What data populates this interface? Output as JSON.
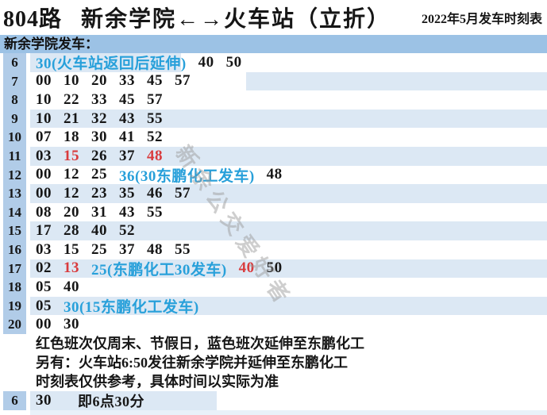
{
  "title": {
    "route": "804路",
    "name": "新余学院←→火车站（立折）",
    "date_label": "2022年5月发车时刻表"
  },
  "section_header": "新余学院发车：",
  "colors": {
    "band": "#9cc2e5",
    "hour_cell": "#b1cce8",
    "stripe": "#dce8f4",
    "red": "#d93b3d",
    "blue": "#28a0da"
  },
  "rows": [
    {
      "hour": "6",
      "bg": "s6",
      "tokens": [
        {
          "t": "30(火车站返回后延伸)",
          "c": "blue"
        },
        {
          "t": "40"
        },
        {
          "t": "50"
        }
      ]
    },
    {
      "hour": "7",
      "bg": "s7",
      "tokens": [
        {
          "t": "00"
        },
        {
          "t": "10"
        },
        {
          "t": "20"
        },
        {
          "t": "33"
        },
        {
          "t": "45"
        },
        {
          "t": "57"
        }
      ]
    },
    {
      "hour": "8",
      "bg": "white",
      "tokens": [
        {
          "t": "10"
        },
        {
          "t": "22"
        },
        {
          "t": "33"
        },
        {
          "t": "45"
        },
        {
          "t": "57"
        }
      ]
    },
    {
      "hour": "9",
      "bg": "blue",
      "tokens": [
        {
          "t": "10"
        },
        {
          "t": "21"
        },
        {
          "t": "32"
        },
        {
          "t": "43"
        },
        {
          "t": "55"
        }
      ]
    },
    {
      "hour": "10",
      "bg": "white",
      "tokens": [
        {
          "t": "07"
        },
        {
          "t": "18"
        },
        {
          "t": "30"
        },
        {
          "t": "41"
        },
        {
          "t": "52"
        }
      ]
    },
    {
      "hour": "11",
      "bg": "blue",
      "tokens": [
        {
          "t": "03"
        },
        {
          "t": "15",
          "c": "red"
        },
        {
          "t": "26"
        },
        {
          "t": "37"
        },
        {
          "t": "48",
          "c": "red"
        }
      ]
    },
    {
      "hour": "12",
      "bg": "white",
      "tokens": [
        {
          "t": "00"
        },
        {
          "t": "12"
        },
        {
          "t": "25"
        },
        {
          "t": "36(30东鹏化工发车)",
          "c": "blue"
        },
        {
          "t": "48"
        }
      ]
    },
    {
      "hour": "13",
      "bg": "blue",
      "tokens": [
        {
          "t": "00"
        },
        {
          "t": "12"
        },
        {
          "t": "23"
        },
        {
          "t": "35"
        },
        {
          "t": "46"
        },
        {
          "t": "57"
        }
      ]
    },
    {
      "hour": "14",
      "bg": "white",
      "tokens": [
        {
          "t": "08"
        },
        {
          "t": "20"
        },
        {
          "t": "31"
        },
        {
          "t": "43"
        },
        {
          "t": "55"
        }
      ]
    },
    {
      "hour": "15",
      "bg": "blue",
      "tokens": [
        {
          "t": "17"
        },
        {
          "t": "28"
        },
        {
          "t": "40"
        },
        {
          "t": "52"
        }
      ]
    },
    {
      "hour": "16",
      "bg": "white",
      "tokens": [
        {
          "t": "03"
        },
        {
          "t": "15"
        },
        {
          "t": "25"
        },
        {
          "t": "37"
        },
        {
          "t": "48"
        },
        {
          "t": "55"
        }
      ]
    },
    {
      "hour": "17",
      "bg": "blue",
      "tokens": [
        {
          "t": "02"
        },
        {
          "t": "13",
          "c": "red"
        },
        {
          "t": "25(东鹏化工30发车)",
          "c": "blue"
        },
        {
          "t": "40",
          "c": "red"
        },
        {
          "t": "50"
        }
      ]
    },
    {
      "hour": "18",
      "bg": "white",
      "tokens": [
        {
          "t": "05"
        },
        {
          "t": "40"
        }
      ]
    },
    {
      "hour": "19",
      "bg": "blue",
      "tokens": [
        {
          "t": "05"
        },
        {
          "t": "30(15东鹏化工发车)",
          "c": "blue"
        }
      ]
    },
    {
      "hour": "20",
      "bg": "white",
      "tokens": [
        {
          "t": "00"
        },
        {
          "t": "30"
        }
      ]
    }
  ],
  "notes": [
    "红色班次仅周末、节假日，蓝色班次延伸至东鹏化工",
    "另有：火车站6:50发往新余学院并延伸至东鹏化工",
    "时刻表仅供参考，具体时间以实际为准"
  ],
  "example": {
    "hour": "6",
    "minute": "30",
    "text": "即6点30分"
  },
  "watermark": "新余公交爱好者"
}
